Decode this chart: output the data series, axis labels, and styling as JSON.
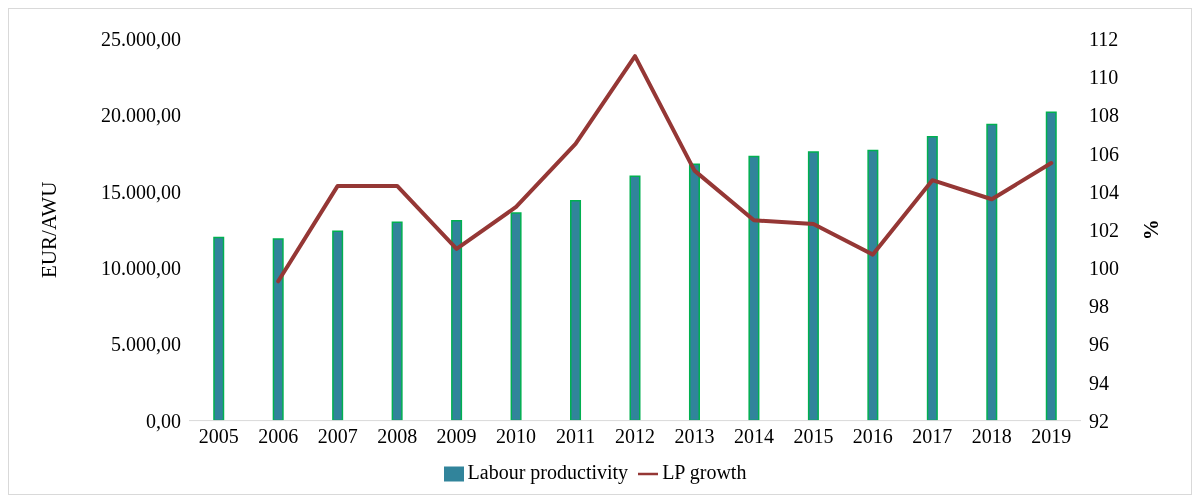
{
  "chart_data": {
    "type": "bar",
    "categories": [
      "2005",
      "2006",
      "2007",
      "2008",
      "2009",
      "2010",
      "2011",
      "2012",
      "2013",
      "2014",
      "2015",
      "2016",
      "2017",
      "2018",
      "2019"
    ],
    "series": [
      {
        "name": "Labour productivity",
        "color": "#31849b",
        "values": [
          12000,
          11900,
          12400,
          13000,
          13100,
          13600,
          14400,
          16000,
          16800,
          17300,
          17600,
          17700,
          18600,
          19400,
          20200
        ]
      },
      {
        "name": "LP growth",
        "type": "line",
        "axis": "y2",
        "color": "#953735",
        "values": [
          null,
          99.3,
          104.3,
          104.3,
          101.0,
          103.2,
          106.5,
          111.1,
          105.1,
          102.5,
          102.3,
          100.7,
          104.6,
          103.6,
          105.5
        ]
      }
    ],
    "ylabel": "EUR/AWU",
    "y2label": "%",
    "ylim": [
      0,
      25000
    ],
    "yticks": [
      {
        "value": 0,
        "label": "0,00"
      },
      {
        "value": 5000,
        "label": "5.000,00"
      },
      {
        "value": 10000,
        "label": "10.000,00"
      },
      {
        "value": 15000,
        "label": "15.000,00"
      },
      {
        "value": 20000,
        "label": "20.000,00"
      },
      {
        "value": 25000,
        "label": "25.000,00"
      }
    ],
    "y2lim": [
      92,
      112
    ],
    "y2ticks": [
      92,
      94,
      96,
      98,
      100,
      102,
      104,
      106,
      108,
      110,
      112
    ],
    "legend": "bottom",
    "grid": false,
    "marker": "none",
    "line_style": "solid"
  }
}
